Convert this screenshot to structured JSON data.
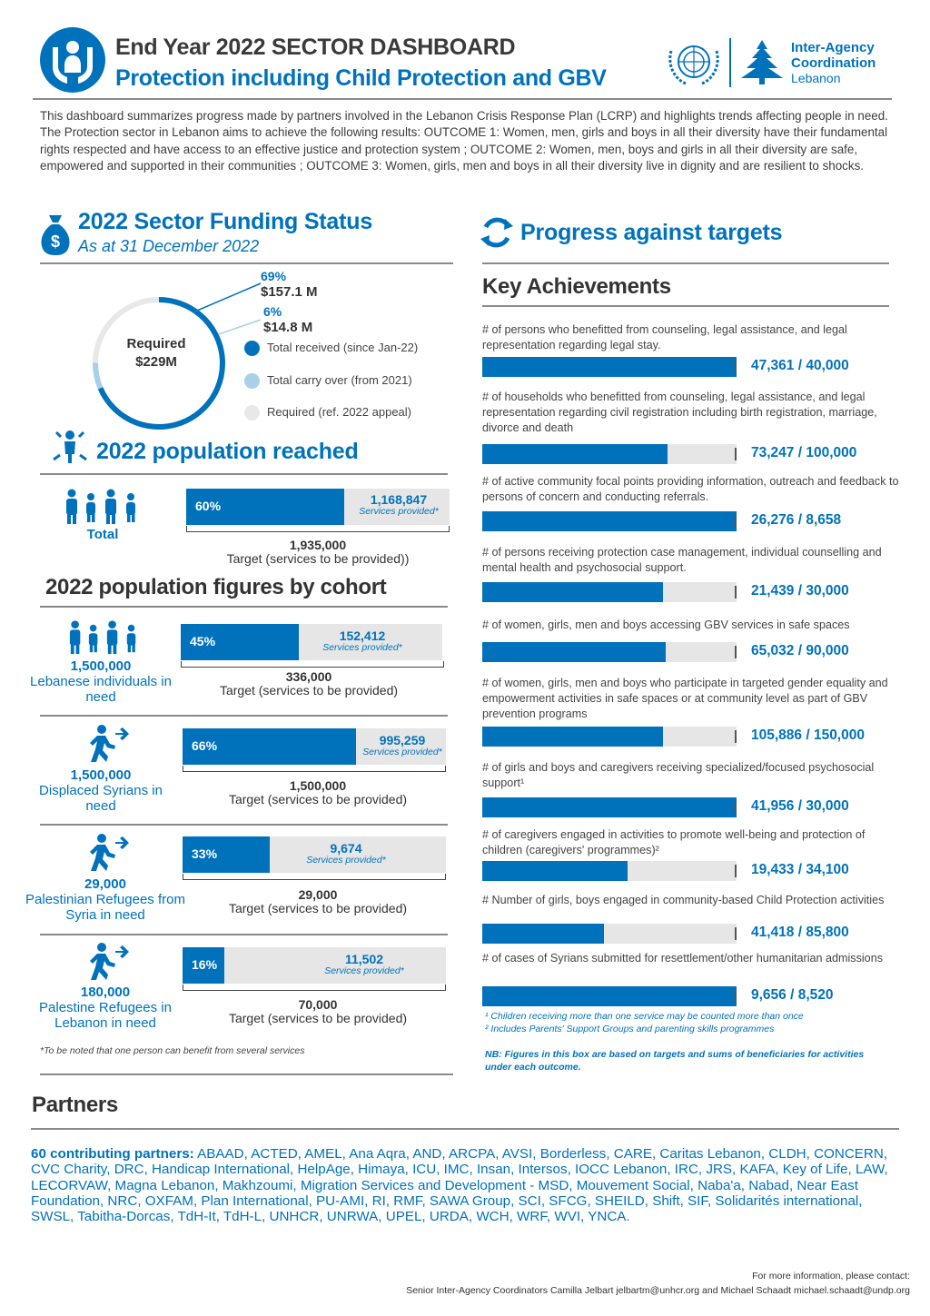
{
  "header": {
    "title_line1": "End Year 2022 SECTOR DASHBOARD",
    "title_line2": "Protection including Child Protection and GBV",
    "org": {
      "line1": "Inter-Agency",
      "line2": "Coordination",
      "line3": "Lebanon"
    }
  },
  "intro": "This dashboard summarizes progress made by partners involved in the Lebanon Crisis Response Plan (LCRP) and highlights trends affecting people in need. The Protection sector in Lebanon aims to achieve the following results: OUTCOME 1: Women, men, girls and boys in all their diversity have their fundamental rights respected and have access to an effective justice and protection system ; OUTCOME 2: Women, men, boys and girls in all their diversity are safe, empowered and supported in their communities ; OUTCOME 3: Women, girls, men and boys in all their diversity live in dignity and are resilient to shocks.",
  "funding": {
    "title": "2022 Sector Funding Status",
    "subtitle": "As at 31 December 2022",
    "required_label": "Required",
    "required_value": "$229M",
    "received_pct": "69%",
    "received_amount": "$157.1 M",
    "carryover_pct": "6%",
    "carryover_amount": "$14.8 M",
    "received_fraction": 0.686,
    "carryover_fraction": 0.065,
    "legend": [
      {
        "label": "Total received (since Jan-22)",
        "color": "#0072bc"
      },
      {
        "label": "Total carry over (from 2021)",
        "color": "#a8d0ea"
      },
      {
        "label": "Required (ref. 2022 appeal)",
        "color": "#e8e8e8"
      }
    ]
  },
  "population": {
    "title": "2022 population reached",
    "total": {
      "label": "Total",
      "pct": "60%",
      "fraction": 0.6,
      "served": "1,168,847",
      "served_label": "Services provided*",
      "target": "1,935,000",
      "target_label": "Target (services to be provided))"
    }
  },
  "cohorts": {
    "title": "2022 population figures by cohort",
    "items": [
      {
        "num": "1,500,000",
        "name": "Lebanese individuals in need",
        "pct": "45%",
        "fraction": 0.45,
        "served": "152,412",
        "served_label": "Services provided*",
        "target": "336,000",
        "target_label": "Target (services to be provided)"
      },
      {
        "num": "1,500,000",
        "name": "Displaced Syrians in need",
        "pct": "66%",
        "fraction": 0.66,
        "served": "995,259",
        "served_label": "Services provided*",
        "target": "1,500,000",
        "target_label": "Target (services to be provided)"
      },
      {
        "num": "29,000",
        "name": "Palestinian Refugees from Syria in need",
        "pct": "33%",
        "fraction": 0.33,
        "served": "9,674",
        "served_label": "Services provided*",
        "target": "29,000",
        "target_label": "Target (services to be provided)"
      },
      {
        "num": "180,000",
        "name": "Palestine Refugees in Lebanon in need",
        "pct": "16%",
        "fraction": 0.16,
        "served": "11,502",
        "served_label": "Services provided*",
        "target": "70,000",
        "target_label": "Target (services to be provided)"
      }
    ],
    "note": "*To be noted that one person can benefit from several services"
  },
  "progress": {
    "title": "Progress against targets",
    "key_title": "Key Achievements",
    "items": [
      {
        "desc": "# of persons who benefitted from counseling, legal assistance, and legal representation regarding legal stay.",
        "value": "47,361 / 40,000",
        "fraction": 1.0
      },
      {
        "desc": "# of households who benefitted from counseling, legal assistance, and legal representation regarding civil registration including birth registration, marriage, divorce and death",
        "value": "73,247 / 100,000",
        "fraction": 0.73
      },
      {
        "desc": "# of active community focal points providing information, outreach and feedback to persons of concern and conducting referrals.",
        "value": "26,276 / 8,658",
        "fraction": 1.0
      },
      {
        "desc": "# of persons receiving protection case management, individual counselling and mental health and psychosocial support.",
        "value": "21,439 / 30,000",
        "fraction": 0.71
      },
      {
        "desc": "# of women, girls, men and boys accessing GBV services in safe spaces",
        "value": "65,032 / 90,000",
        "fraction": 0.72
      },
      {
        "desc": "# of women, girls, men and boys who participate in targeted gender equality and empowerment activities in safe spaces or at community level as part of GBV prevention programs",
        "value": "105,886 / 150,000",
        "fraction": 0.71
      },
      {
        "desc": "# of girls and boys and caregivers receiving specialized/focused psychosocial support¹",
        "value": "41,956 / 30,000",
        "fraction": 1.0
      },
      {
        "desc": "# of caregivers engaged in activities to promote well-being and protection of children (caregivers' programmes)²",
        "value": "19,433 / 34,100",
        "fraction": 0.57
      },
      {
        "desc": "# Number of girls, boys engaged in community-based Child Protection activities",
        "value": "41,418 / 85,800",
        "fraction": 0.48
      },
      {
        "desc": "# of cases of Syrians submitted for resettlement/other humanitarian admissions",
        "value": "9,656 / 8,520",
        "fraction": 1.0
      }
    ],
    "footnote1": "¹ Children receiving more than one service may be counted more than once",
    "footnote2": "² Includes Parents' Support Groups and parenting skills programmes",
    "nb": "NB: Figures in this box are based on targets and sums of beneficiaries for activities under each outcome."
  },
  "partners": {
    "title": "Partners",
    "lead": "60 contributing partners:",
    "list": " ABAAD, ACTED, AMEL, Ana Aqra, AND, ARCPA, AVSI, Borderless, CARE, Caritas Lebanon, CLDH, CONCERN, CVC Charity, DRC, Handicap International, HelpAge, Himaya, ICU, IMC, Insan, Intersos, IOCC Lebanon, IRC, JRS, KAFA, Key of Life, LAW, LECORVAW, Magna Lebanon, Makhzoumi, Migration Services and Development - MSD, Mouvement Social, Naba'a, Nabad, Near East Foundation, NRC, OXFAM, Plan International, PU-AMI, RI, RMF, SAWA Group, SCI, SFCG, SHEILD, Shift, SIF, Solidarités international, SWSL, Tabitha-Dorcas, TdH-It, TdH-L, UNHCR, UNRWA, UPEL, URDA, WCH, WRF, WVI, YNCA."
  },
  "contact": {
    "line1": "For more information, please contact:",
    "line2": "Senior Inter-Agency Coordinators Camilla Jelbart jelbartm@unhcr.org and Michael Schaadt michael.schaadt@undp.org"
  }
}
